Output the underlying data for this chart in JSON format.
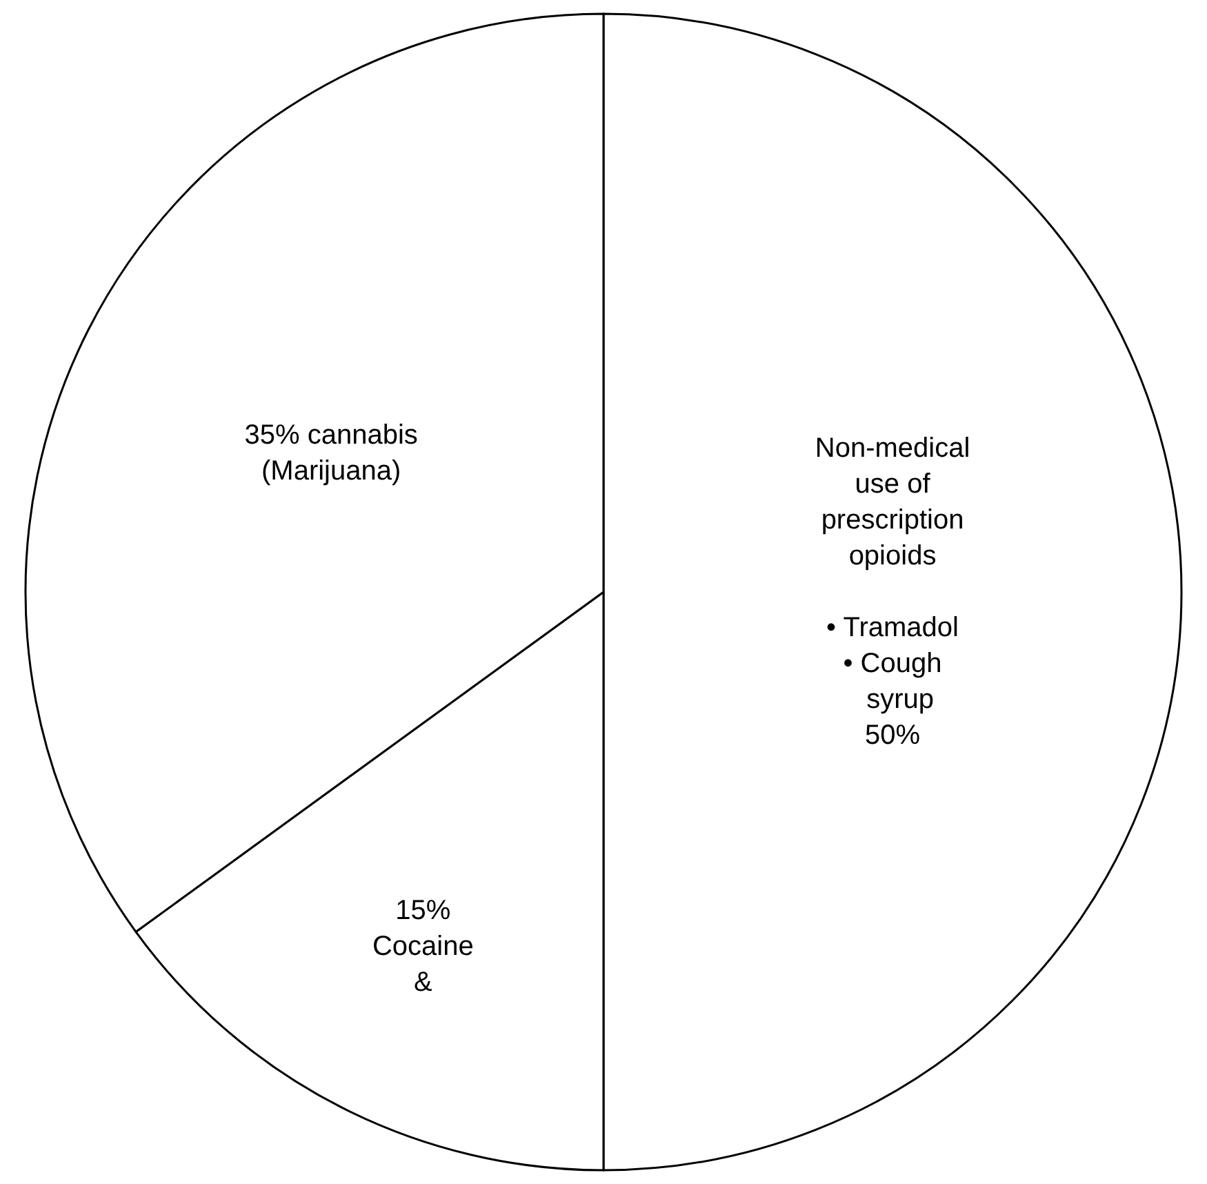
{
  "chart_data": {
    "type": "pie",
    "categories": [
      "Non-medical\nuse of\nprescription\nopioids\n\n• Tramadol\n• Cough\n  syrup\n50%",
      "15%\nCocaine\n&",
      "35% cannabis\n(Marijuana)"
    ],
    "values": [
      50,
      15,
      35
    ],
    "colors": [
      "#ffffff",
      "#ffffff",
      "#ffffff"
    ]
  }
}
